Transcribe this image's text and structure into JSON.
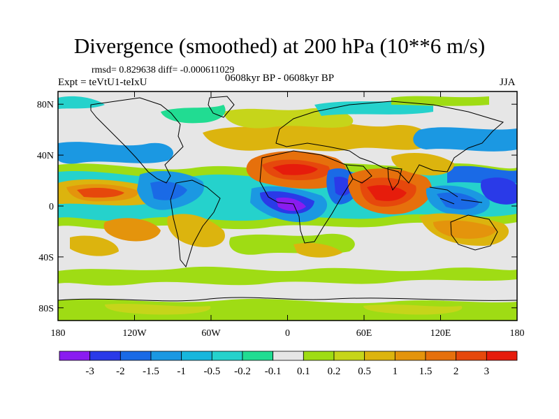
{
  "title": "Divergence (smoothed) at 200 hPa (10**6 m/s)",
  "stats": "rmsd= 0.829638 diff= -0.000611029",
  "experiment": "Expt = teVtU1-teIxU",
  "period": "0608kyr BP - 0608kyr BP",
  "season": "JJA",
  "axes": {
    "y_ticks": [
      {
        "lat": 80,
        "label": "80N"
      },
      {
        "lat": 40,
        "label": "40N"
      },
      {
        "lat": 0,
        "label": "0"
      },
      {
        "lat": -40,
        "label": "40S"
      },
      {
        "lat": -80,
        "label": "80S"
      }
    ],
    "x_ticks": [
      {
        "lon": -180,
        "label": "180"
      },
      {
        "lon": -120,
        "label": "120W"
      },
      {
        "lon": -60,
        "label": "60W"
      },
      {
        "lon": 0,
        "label": "0"
      },
      {
        "lon": 60,
        "label": "60E"
      },
      {
        "lon": 120,
        "label": "120E"
      },
      {
        "lon": 180,
        "label": "180"
      }
    ]
  },
  "colorbar": {
    "colors": [
      "#8a1cf0",
      "#2a3ae8",
      "#1a6ae6",
      "#1b98e2",
      "#17b6dc",
      "#25d2cc",
      "#21dc92",
      "#e6e6e6",
      "#9fdc14",
      "#c6d51a",
      "#dcb40e",
      "#e4940c",
      "#e6700c",
      "#e6480c",
      "#e61c0c"
    ],
    "labels": [
      "-3",
      "-2",
      "-1.5",
      "-1",
      "-0.5",
      "-0.2",
      "-0.1",
      "0.1",
      "0.2",
      "0.5",
      "1",
      "1.5",
      "2",
      "3"
    ]
  },
  "chart_data": {
    "type": "heatmap",
    "variable": "Divergence (smoothed) at 200 hPa",
    "units": "10**6 m/s",
    "levels": [
      -3,
      -2,
      -1.5,
      -1,
      -0.5,
      -0.2,
      -0.1,
      0.1,
      0.2,
      0.5,
      1,
      1.5,
      2,
      3
    ],
    "lon_range": [
      -180,
      180
    ],
    "lat_range": [
      -90,
      90
    ],
    "features": [
      {
        "region": "tropical Africa / Gulf of Guinea",
        "lon": 8,
        "lat": -3,
        "value": -3
      },
      {
        "region": "Sahara / North Africa",
        "lon": 5,
        "lat": 18,
        "value": 3
      },
      {
        "region": "Arabian Sea / Indian Ocean",
        "lon": 62,
        "lat": 2,
        "value": 3
      },
      {
        "region": "Arabia / East Africa",
        "lon": 40,
        "lat": 12,
        "value": -1.5
      },
      {
        "region": "Maritime Continent",
        "lon": 125,
        "lat": -2,
        "value": -1
      },
      {
        "region": "North Indian Ocean",
        "lon": 95,
        "lat": 10,
        "value": 1
      },
      {
        "region": "Central Pacific",
        "lon": -160,
        "lat": 5,
        "value": 1.5
      },
      {
        "region": "Eastern Pacific",
        "lon": -120,
        "lat": 12,
        "value": -0.5
      },
      {
        "region": "South America",
        "lon": -55,
        "lat": -10,
        "value": 1
      },
      {
        "region": "North Atlantic",
        "lon": -40,
        "lat": 45,
        "value": -0.5
      },
      {
        "region": "South Pacific",
        "lon": -150,
        "lat": -25,
        "value": 1
      }
    ]
  }
}
